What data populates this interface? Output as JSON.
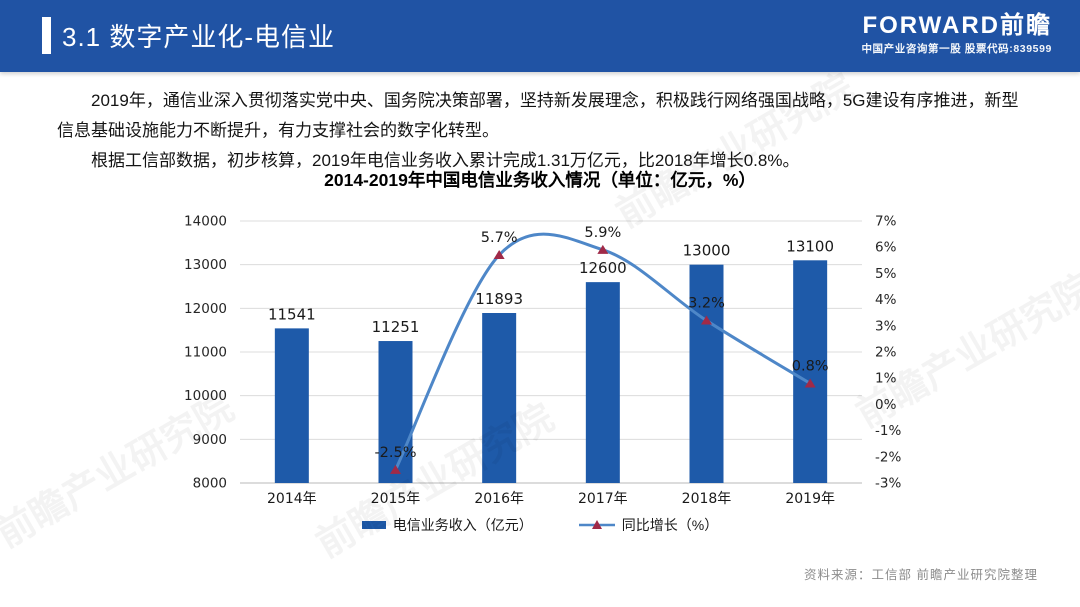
{
  "header": {
    "title": "3.1 数字产业化-电信业",
    "logo_text": "FORWARD前瞻",
    "logo_tagline": "中国产业咨询第一股 股票代码:839599",
    "bg_color": "#2053a4"
  },
  "body": {
    "paragraph1": "2019年，通信业深入贯彻落实党中央、国务院决策部署，坚持新发展理念，积极践行网络强国战略，5G建设有序推进，新型信息基础设施能力不断提升，有力支撑社会的数字化转型。",
    "paragraph2": "根据工信部数据，初步核算，2019年电信业务收入累计完成1.31万亿元，比2018年增长0.8%。"
  },
  "chart_data": {
    "type": "bar+line",
    "title": "2014-2019年中国电信业务收入情况（单位：亿元，%）",
    "categories": [
      "2014年",
      "2015年",
      "2016年",
      "2017年",
      "2018年",
      "2019年"
    ],
    "series": [
      {
        "name": "电信业务收入（亿元）",
        "type": "bar",
        "axis": "left",
        "values": [
          11541,
          11251,
          11893,
          12600,
          13000,
          13100
        ],
        "labels": [
          "11541",
          "11251",
          "11893",
          "12600",
          "13000",
          "13100"
        ],
        "color": "#1e5aa9"
      },
      {
        "name": "同比增长（%）",
        "type": "line",
        "axis": "right",
        "values": [
          null,
          -2.5,
          5.7,
          5.9,
          3.2,
          0.8
        ],
        "labels": [
          "",
          "-2.5%",
          "5.7%",
          "5.9%",
          "3.2%",
          "0.8%"
        ],
        "color": "#4e87c8",
        "marker": "triangle",
        "marker_color": "#a02a48"
      }
    ],
    "left_axis": {
      "min": 8000,
      "max": 14000,
      "ticks": [
        "8000",
        "9000",
        "10000",
        "11000",
        "12000",
        "13000",
        "14000"
      ]
    },
    "right_axis": {
      "min": -3,
      "max": 7,
      "ticks": [
        "-3%",
        "-2%",
        "-1%",
        "0%",
        "1%",
        "2%",
        "3%",
        "4%",
        "5%",
        "6%",
        "7%"
      ]
    },
    "grid": true,
    "grid_color": "#dcdcdc",
    "baseline_color": "#b9b9b9",
    "legend_position": "bottom"
  },
  "footer": {
    "source": "资料来源：工信部 前瞻产业研究院整理"
  },
  "watermark": {
    "text": "前瞻产业研究院"
  }
}
